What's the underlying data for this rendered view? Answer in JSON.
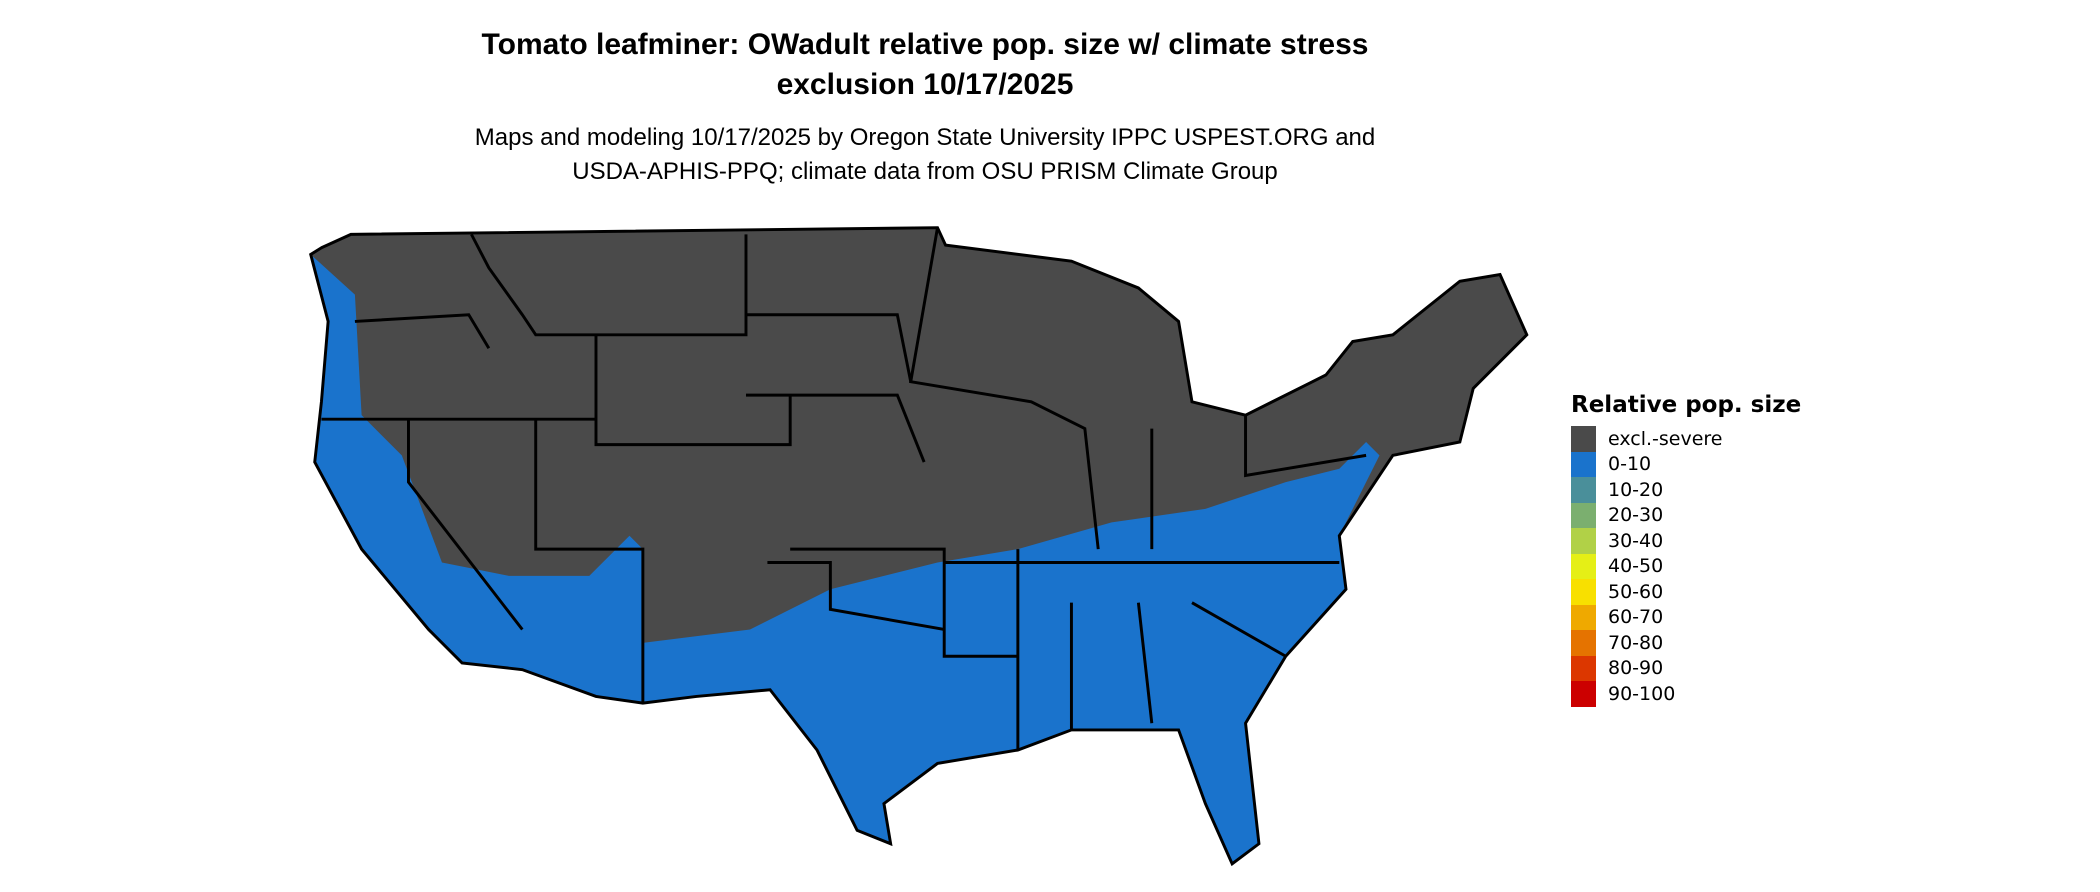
{
  "title_line1": "Tomato leafminer: OWadult relative pop. size w/ climate stress",
  "title_line2": "exclusion 10/17/2025",
  "subtitle_line1": "Maps and modeling 10/17/2025 by Oregon State University IPPC USPEST.ORG and",
  "subtitle_line2": "USDA-APHIS-PPQ; climate data from OSU PRISM Climate Group",
  "map": {
    "region": "Contiguous United States",
    "dominant_classes": [
      "excl.-severe",
      "0-10"
    ]
  },
  "legend": {
    "title": "Relative pop. size",
    "items": [
      {
        "label": "excl.-severe",
        "color": "#4a4a4a"
      },
      {
        "label": "0-10",
        "color": "#1a73cc"
      },
      {
        "label": "10-20",
        "color": "#4a8f9a"
      },
      {
        "label": "20-30",
        "color": "#7baf6f"
      },
      {
        "label": "30-40",
        "color": "#b1d147"
      },
      {
        "label": "40-50",
        "color": "#e5ef16"
      },
      {
        "label": "50-60",
        "color": "#f8e000"
      },
      {
        "label": "60-70",
        "color": "#efa900"
      },
      {
        "label": "70-80",
        "color": "#e57300"
      },
      {
        "label": "80-90",
        "color": "#dc3700"
      },
      {
        "label": "90-100",
        "color": "#cc0000"
      }
    ]
  }
}
